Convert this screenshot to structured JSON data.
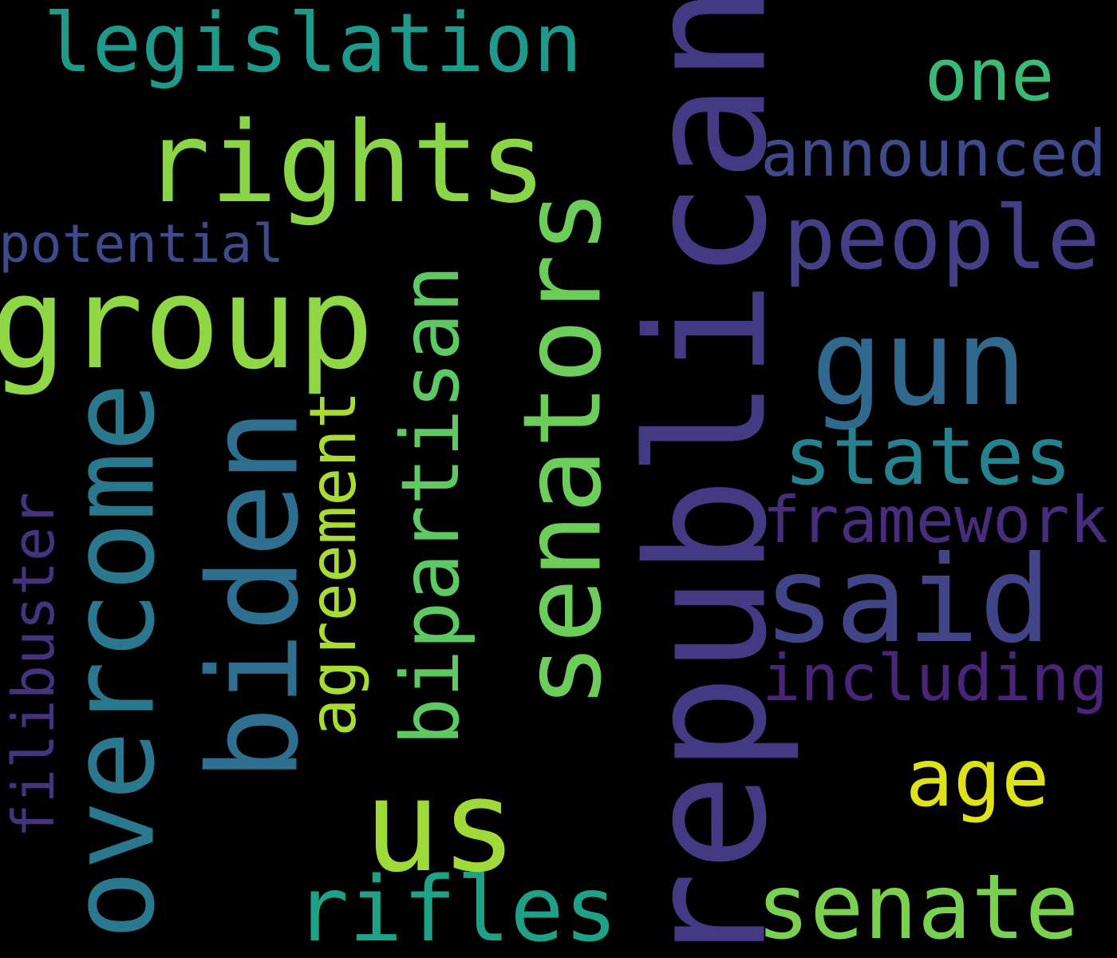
{
  "background": "#000000",
  "words": [
    {
      "key": "legislation",
      "text": "legislation",
      "color": "#1f9a8a",
      "weight": 0.6,
      "orientation": "horizontal"
    },
    {
      "key": "rights",
      "text": "rights",
      "color": "#8ad547",
      "weight": 0.8,
      "orientation": "horizontal"
    },
    {
      "key": "one",
      "text": "one",
      "color": "#3aba76",
      "weight": 0.5,
      "orientation": "horizontal"
    },
    {
      "key": "announced",
      "text": "announced",
      "color": "#3e4a89",
      "weight": 0.45,
      "orientation": "horizontal"
    },
    {
      "key": "potential",
      "text": "potential",
      "color": "#3e4a89",
      "weight": 0.35,
      "orientation": "horizontal"
    },
    {
      "key": "group",
      "text": "group",
      "color": "#8fd744",
      "weight": 0.85,
      "orientation": "horizontal"
    },
    {
      "key": "people",
      "text": "people",
      "color": "#433e85",
      "weight": 0.6,
      "orientation": "horizontal"
    },
    {
      "key": "gun",
      "text": "gun",
      "color": "#31688e",
      "weight": 0.8,
      "orientation": "horizontal"
    },
    {
      "key": "states",
      "text": "states",
      "color": "#26828e",
      "weight": 0.55,
      "orientation": "horizontal"
    },
    {
      "key": "framework",
      "text": "framework",
      "color": "#472d7b",
      "weight": 0.45,
      "orientation": "horizontal"
    },
    {
      "key": "said",
      "text": "said",
      "color": "#414487",
      "weight": 0.8,
      "orientation": "horizontal"
    },
    {
      "key": "including",
      "text": "including",
      "color": "#482576",
      "weight": 0.45,
      "orientation": "horizontal"
    },
    {
      "key": "age",
      "text": "age",
      "color": "#dde318",
      "weight": 0.55,
      "orientation": "horizontal"
    },
    {
      "key": "senate",
      "text": "senate",
      "color": "#7ad151",
      "weight": 0.6,
      "orientation": "horizontal"
    },
    {
      "key": "rifles",
      "text": "rifles",
      "color": "#1fa187",
      "weight": 0.6,
      "orientation": "horizontal"
    },
    {
      "key": "us",
      "text": "us",
      "color": "#a0da39",
      "weight": 0.9,
      "orientation": "horizontal"
    },
    {
      "key": "republican",
      "text": "republican",
      "color": "#443a83",
      "weight": 1.0,
      "orientation": "vertical"
    },
    {
      "key": "senators",
      "text": "senators",
      "color": "#6ccd5a",
      "weight": 0.85,
      "orientation": "vertical"
    },
    {
      "key": "bipartisan",
      "text": "bipartisan",
      "color": "#5ec962",
      "weight": 0.6,
      "orientation": "vertical"
    },
    {
      "key": "agreement",
      "text": "agreement",
      "color": "#a8db34",
      "weight": 0.45,
      "orientation": "vertical"
    },
    {
      "key": "biden",
      "text": "biden",
      "color": "#2e6e8e",
      "weight": 0.9,
      "orientation": "vertical"
    },
    {
      "key": "overcome",
      "text": "overcome",
      "color": "#2a788e",
      "weight": 0.8,
      "orientation": "vertical"
    },
    {
      "key": "filibuster",
      "text": "filibuster",
      "color": "#46337e",
      "weight": 0.4,
      "orientation": "vertical"
    }
  ]
}
